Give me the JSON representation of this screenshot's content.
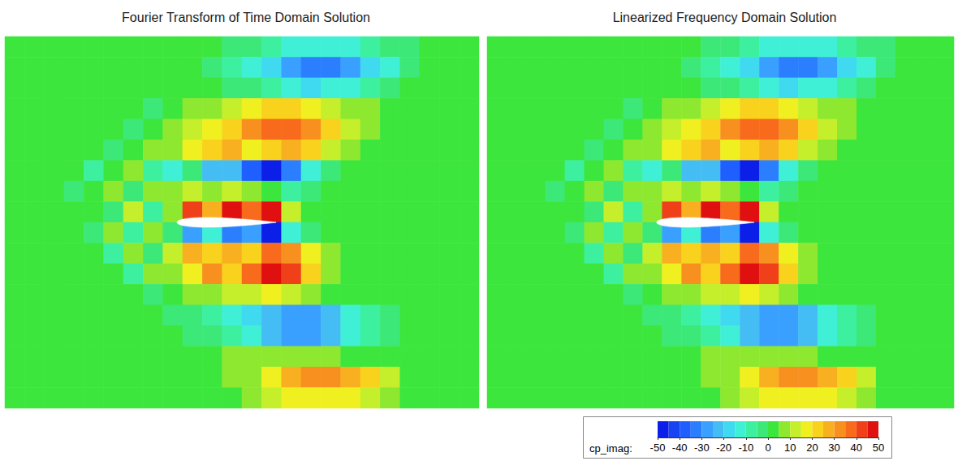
{
  "chart_data": [
    {
      "type": "heatmap",
      "title": "Fourier Transform of Time Domain Solution",
      "tick_labels": false,
      "cells": [
        [
          0,
          0,
          0,
          0,
          0,
          0,
          0,
          0,
          0,
          0,
          0,
          -3,
          -5,
          -8,
          -12,
          -15,
          -15,
          -12,
          -8,
          -5,
          -3,
          0,
          0,
          0
        ],
        [
          0,
          0,
          0,
          0,
          0,
          0,
          0,
          0,
          0,
          0,
          -3,
          -8,
          -12,
          -20,
          -28,
          -32,
          -32,
          -28,
          -20,
          -12,
          -5,
          0,
          0,
          0
        ],
        [
          0,
          0,
          0,
          0,
          0,
          0,
          0,
          0,
          0,
          3,
          0,
          -3,
          -5,
          -10,
          -15,
          -18,
          -15,
          -12,
          -8,
          -5,
          0,
          0,
          0,
          0
        ],
        [
          0,
          0,
          0,
          0,
          0,
          3,
          0,
          -5,
          0,
          5,
          8,
          12,
          18,
          22,
          22,
          18,
          12,
          8,
          5,
          3,
          0,
          0,
          0,
          0
        ],
        [
          0,
          0,
          0,
          0,
          3,
          0,
          -5,
          0,
          5,
          10,
          15,
          22,
          30,
          36,
          38,
          33,
          22,
          12,
          6,
          3,
          0,
          0,
          0,
          0
        ],
        [
          0,
          0,
          0,
          3,
          0,
          -5,
          0,
          8,
          5,
          18,
          22,
          25,
          15,
          22,
          28,
          22,
          12,
          5,
          0,
          0,
          0,
          0,
          0,
          0
        ],
        [
          0,
          0,
          3,
          0,
          -8,
          0,
          8,
          -10,
          -15,
          -5,
          -25,
          -22,
          -40,
          -50,
          -32,
          -12,
          -3,
          0,
          0,
          0,
          0,
          0,
          0,
          0
        ],
        [
          0,
          0,
          0,
          -3,
          0,
          8,
          -5,
          5,
          5,
          12,
          8,
          12,
          5,
          3,
          -8,
          -5,
          0,
          0,
          0,
          0,
          0,
          0,
          0,
          0
        ],
        [
          0,
          0,
          0,
          0,
          3,
          -5,
          10,
          -8,
          5,
          42,
          25,
          48,
          35,
          48,
          12,
          3,
          0,
          0,
          0,
          0,
          0,
          0,
          0,
          0
        ],
        [
          0,
          0,
          0,
          0,
          -3,
          5,
          -10,
          8,
          -5,
          -28,
          -15,
          -35,
          -30,
          -50,
          -15,
          -3,
          0,
          0,
          0,
          0,
          0,
          0,
          0,
          0
        ],
        [
          0,
          0,
          0,
          3,
          0,
          -8,
          5,
          -5,
          12,
          25,
          20,
          25,
          22,
          35,
          30,
          15,
          5,
          0,
          0,
          0,
          0,
          0,
          0,
          0
        ],
        [
          0,
          0,
          0,
          0,
          3,
          0,
          -8,
          5,
          5,
          15,
          30,
          22,
          35,
          45,
          40,
          22,
          8,
          0,
          0,
          0,
          0,
          0,
          0,
          0
        ],
        [
          0,
          0,
          0,
          0,
          0,
          3,
          0,
          -5,
          0,
          5,
          8,
          10,
          12,
          15,
          12,
          8,
          3,
          0,
          0,
          0,
          0,
          0,
          0,
          0
        ],
        [
          0,
          0,
          0,
          0,
          0,
          0,
          3,
          0,
          -3,
          -5,
          -8,
          -12,
          -18,
          -25,
          -30,
          -30,
          -25,
          -15,
          -8,
          -3,
          0,
          0,
          0,
          0
        ],
        [
          0,
          0,
          0,
          0,
          0,
          0,
          0,
          0,
          0,
          -3,
          -5,
          -8,
          -12,
          -25,
          -30,
          -28,
          -22,
          -15,
          -8,
          -3,
          0,
          0,
          0,
          0
        ],
        [
          0,
          0,
          0,
          0,
          0,
          0,
          0,
          0,
          0,
          0,
          3,
          5,
          5,
          5,
          5,
          5,
          5,
          3,
          0,
          0,
          0,
          0,
          0,
          0
        ],
        [
          0,
          0,
          0,
          0,
          0,
          0,
          0,
          0,
          0,
          0,
          3,
          5,
          8,
          15,
          25,
          30,
          30,
          28,
          20,
          10,
          3,
          0,
          0,
          0
        ],
        [
          0,
          0,
          0,
          0,
          0,
          0,
          0,
          0,
          0,
          0,
          0,
          3,
          5,
          10,
          15,
          18,
          18,
          15,
          10,
          5,
          0,
          0,
          0,
          0
        ]
      ]
    },
    {
      "type": "heatmap",
      "title": "Linearized Frequency Domain Solution",
      "tick_labels": false,
      "cells": [
        [
          0,
          0,
          0,
          0,
          0,
          0,
          0,
          0,
          0,
          0,
          0,
          -3,
          -5,
          -8,
          -12,
          -15,
          -15,
          -12,
          -8,
          -5,
          -3,
          0,
          0,
          0
        ],
        [
          0,
          0,
          0,
          0,
          0,
          0,
          0,
          0,
          0,
          0,
          -3,
          -8,
          -12,
          -20,
          -28,
          -32,
          -32,
          -28,
          -20,
          -12,
          -5,
          0,
          0,
          0
        ],
        [
          0,
          0,
          0,
          0,
          0,
          0,
          0,
          0,
          0,
          3,
          0,
          -3,
          -5,
          -10,
          -15,
          -18,
          -15,
          -12,
          -8,
          -5,
          0,
          0,
          0,
          0
        ],
        [
          0,
          0,
          0,
          0,
          0,
          3,
          0,
          -5,
          0,
          5,
          8,
          12,
          18,
          22,
          22,
          18,
          12,
          8,
          5,
          3,
          0,
          0,
          0,
          0
        ],
        [
          0,
          0,
          0,
          0,
          3,
          0,
          -5,
          0,
          5,
          10,
          15,
          22,
          30,
          36,
          38,
          33,
          22,
          12,
          6,
          3,
          0,
          0,
          0,
          0
        ],
        [
          0,
          0,
          0,
          3,
          0,
          -5,
          0,
          8,
          5,
          18,
          22,
          25,
          15,
          22,
          28,
          22,
          12,
          5,
          0,
          0,
          0,
          0,
          0,
          0
        ],
        [
          0,
          0,
          3,
          0,
          -8,
          0,
          8,
          -10,
          -15,
          -5,
          -25,
          -22,
          -40,
          -50,
          -32,
          -12,
          -3,
          0,
          0,
          0,
          0,
          0,
          0,
          0
        ],
        [
          0,
          0,
          0,
          -3,
          0,
          8,
          -5,
          5,
          5,
          12,
          8,
          12,
          5,
          3,
          -8,
          -5,
          0,
          0,
          0,
          0,
          0,
          0,
          0,
          0
        ],
        [
          0,
          0,
          0,
          0,
          3,
          -5,
          10,
          -8,
          5,
          42,
          25,
          48,
          35,
          48,
          12,
          3,
          0,
          0,
          0,
          0,
          0,
          0,
          0,
          0
        ],
        [
          0,
          0,
          0,
          0,
          -3,
          5,
          -10,
          8,
          -5,
          -28,
          -15,
          -35,
          -30,
          -50,
          -15,
          -3,
          0,
          0,
          0,
          0,
          0,
          0,
          0,
          0
        ],
        [
          0,
          0,
          0,
          3,
          0,
          -8,
          5,
          -5,
          12,
          25,
          20,
          25,
          22,
          35,
          30,
          15,
          5,
          0,
          0,
          0,
          0,
          0,
          0,
          0
        ],
        [
          0,
          0,
          0,
          0,
          3,
          0,
          -8,
          5,
          5,
          15,
          30,
          22,
          35,
          45,
          40,
          22,
          8,
          0,
          0,
          0,
          0,
          0,
          0,
          0
        ],
        [
          0,
          0,
          0,
          0,
          0,
          3,
          0,
          -5,
          0,
          5,
          8,
          10,
          12,
          15,
          12,
          8,
          3,
          0,
          0,
          0,
          0,
          0,
          0,
          0
        ],
        [
          0,
          0,
          0,
          0,
          0,
          0,
          3,
          0,
          -3,
          -5,
          -8,
          -12,
          -18,
          -25,
          -30,
          -30,
          -25,
          -15,
          -8,
          -3,
          0,
          0,
          0,
          0
        ],
        [
          0,
          0,
          0,
          0,
          0,
          0,
          0,
          0,
          0,
          -3,
          -5,
          -8,
          -12,
          -25,
          -30,
          -28,
          -22,
          -15,
          -8,
          -3,
          0,
          0,
          0,
          0
        ],
        [
          0,
          0,
          0,
          0,
          0,
          0,
          0,
          0,
          0,
          0,
          3,
          5,
          5,
          5,
          5,
          5,
          5,
          3,
          0,
          0,
          0,
          0,
          0,
          0
        ],
        [
          0,
          0,
          0,
          0,
          0,
          0,
          0,
          0,
          0,
          0,
          3,
          5,
          8,
          15,
          25,
          30,
          30,
          28,
          20,
          10,
          3,
          0,
          0,
          0
        ],
        [
          0,
          0,
          0,
          0,
          0,
          0,
          0,
          0,
          0,
          0,
          0,
          3,
          5,
          10,
          15,
          18,
          18,
          15,
          10,
          5,
          0,
          0,
          0,
          0
        ]
      ]
    }
  ],
  "colorbar": {
    "label": "cp_imag:",
    "range": [
      -50,
      50
    ],
    "ticks": [
      -50,
      -40,
      -30,
      -20,
      -10,
      0,
      10,
      20,
      30,
      40,
      50
    ],
    "levels": [
      -50,
      -45,
      -40,
      -35,
      -30,
      -25,
      -20,
      -15,
      -10,
      -5,
      0,
      5,
      10,
      15,
      20,
      25,
      30,
      35,
      40,
      45,
      50
    ],
    "colors": [
      "#0b1fe8",
      "#1843f0",
      "#1f5fff",
      "#2b7fff",
      "#3aa0ff",
      "#44bdf5",
      "#3fd9f0",
      "#3ff0d6",
      "#3cf0a0",
      "#3ce878",
      "#3de63d",
      "#8ee830",
      "#c4ef2a",
      "#f0f020",
      "#f8d21c",
      "#f8b020",
      "#f89020",
      "#f86a1c",
      "#f0401a",
      "#e01010"
    ]
  }
}
